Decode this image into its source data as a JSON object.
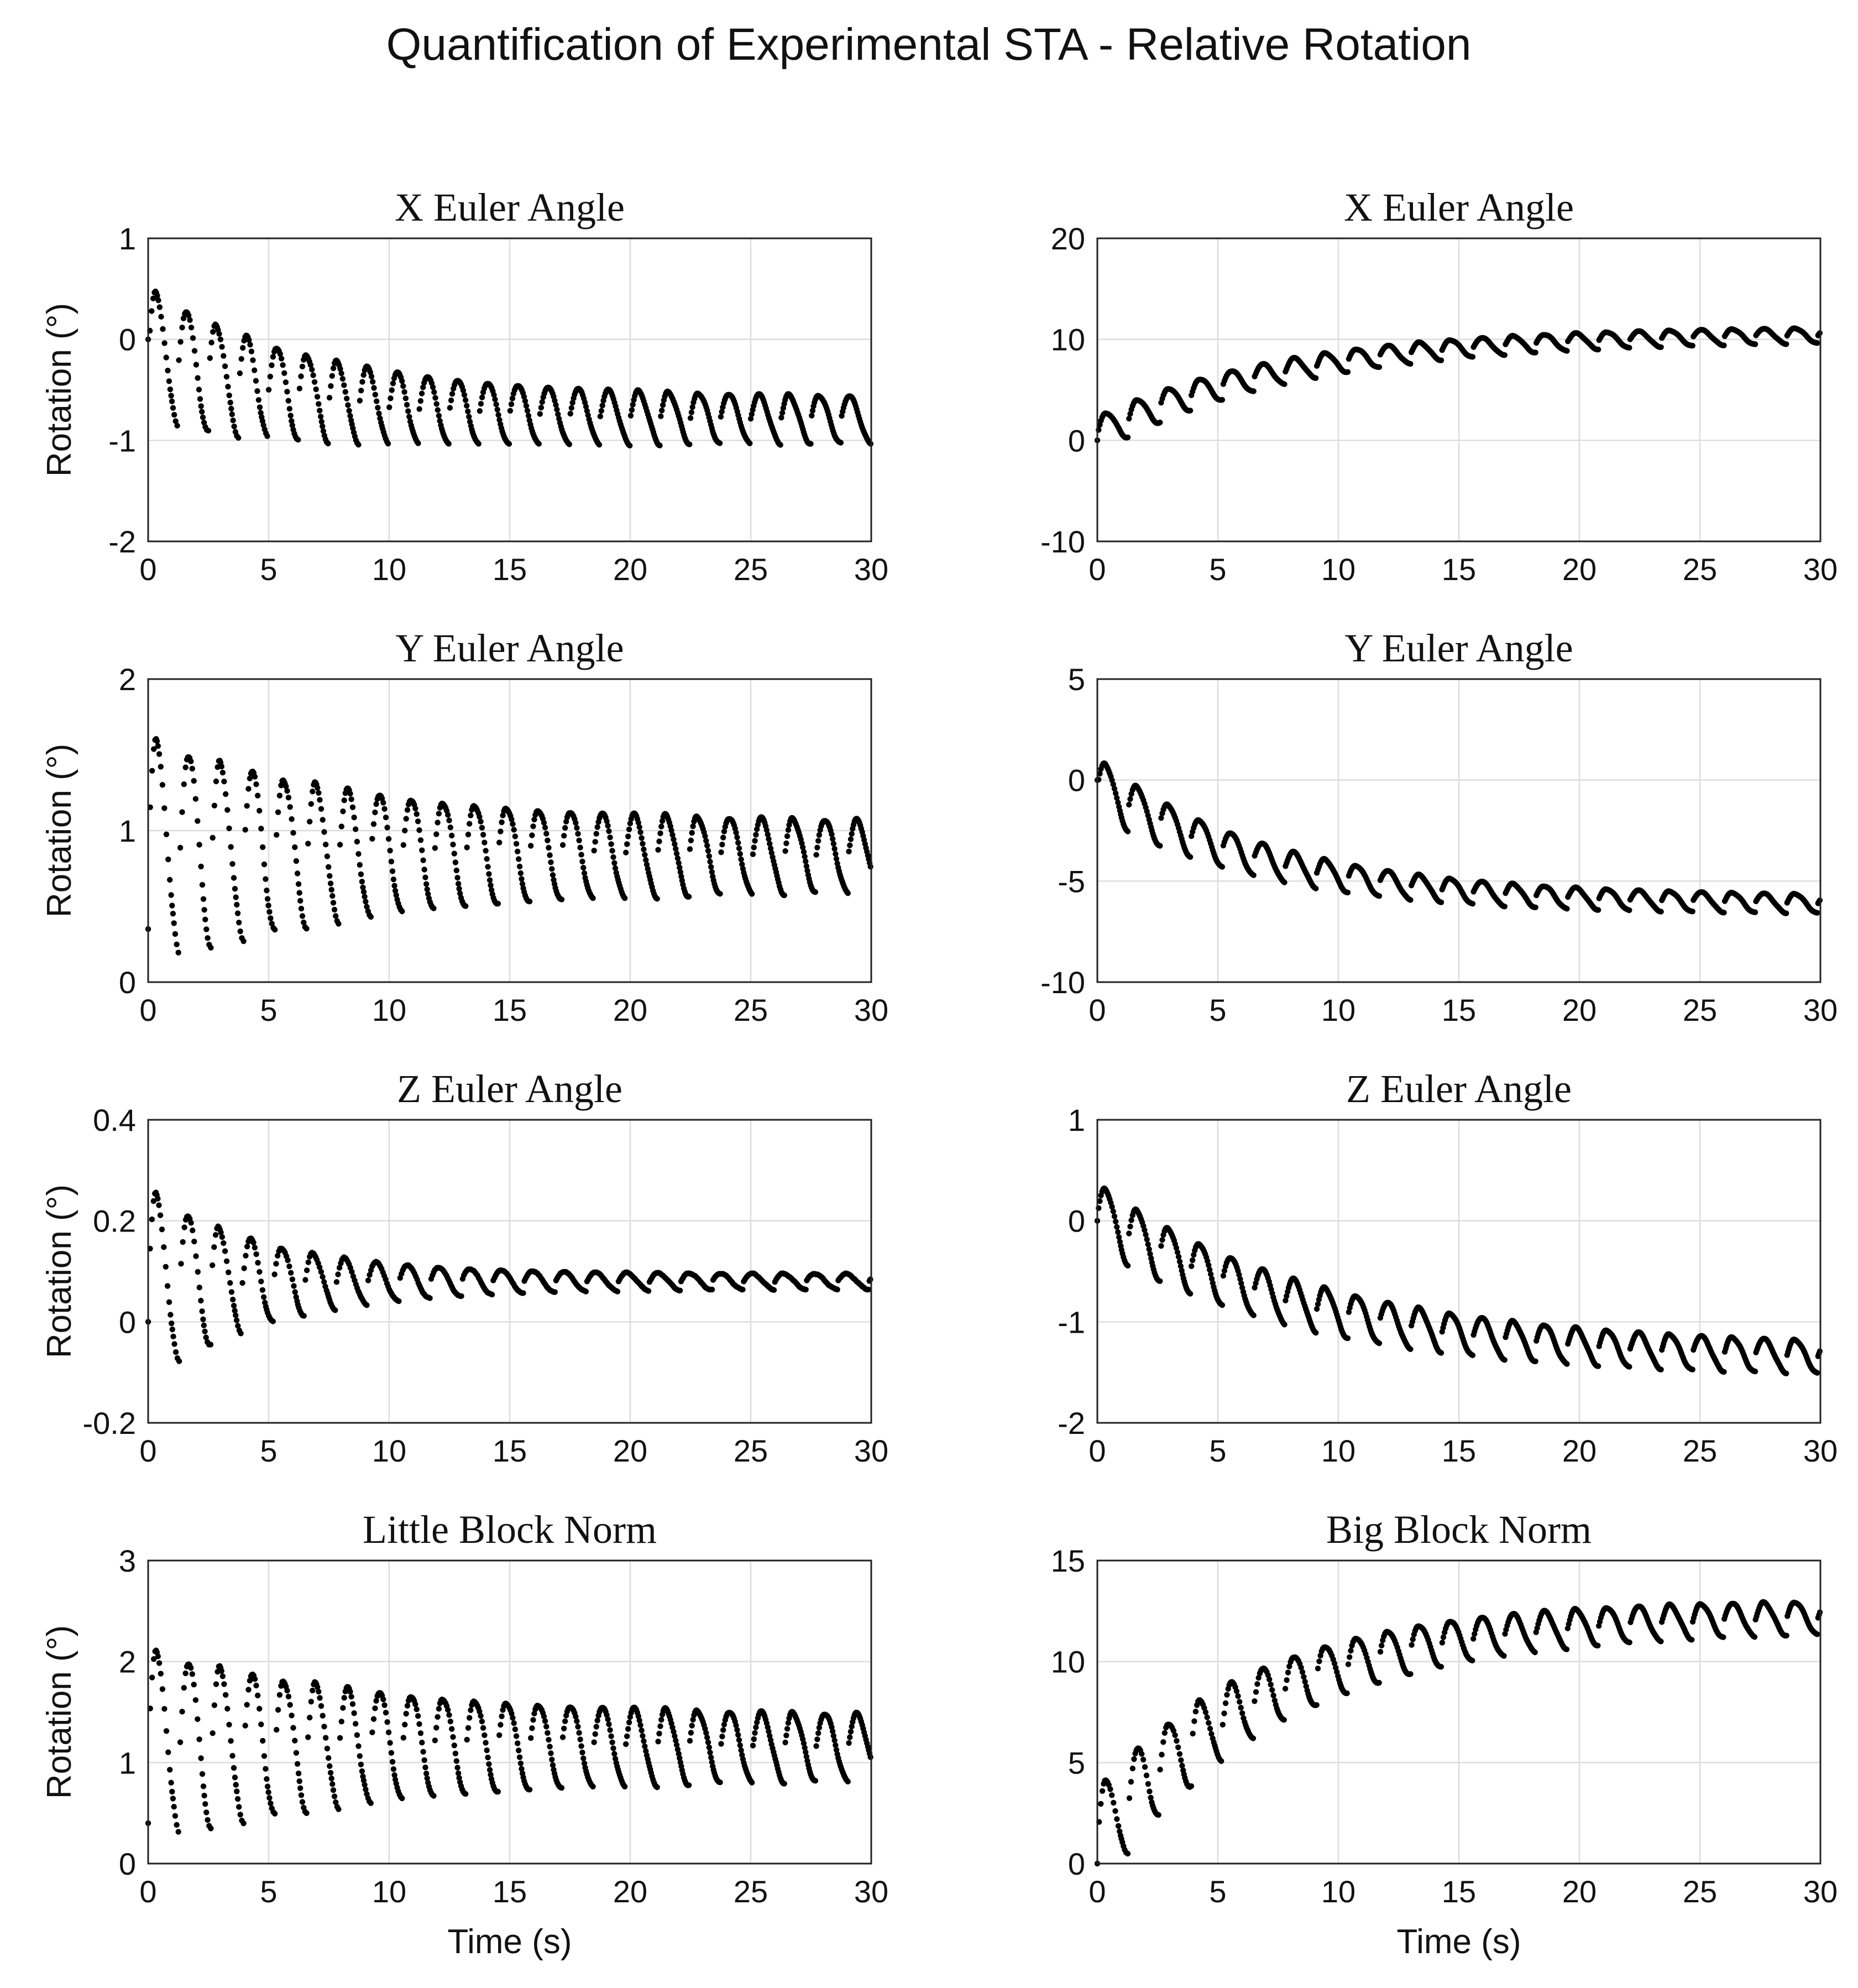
{
  "figure_title": "Quantification of Experimental STA - Relative Rotation",
  "chart_data": [
    {
      "type": "scatter",
      "title": "X Euler Angle",
      "xlabel": "",
      "ylabel": "Rotation (°)",
      "xlim": [
        0,
        30
      ],
      "ylim": [
        -2,
        1
      ],
      "xticks": [
        0,
        5,
        10,
        15,
        20,
        25,
        30
      ],
      "yticks": [
        -2,
        -1,
        0,
        1
      ],
      "grid": true,
      "model": {
        "x_end": 30,
        "period": 1.25,
        "start": 0,
        "base0": -0.15,
        "base1": -0.8,
        "baseTau": 6,
        "amp0": 0.65,
        "amp1": 0.22,
        "ampTau": 9,
        "dense": 0.45
      }
    },
    {
      "type": "scatter",
      "title": "X Euler Angle",
      "xlabel": "",
      "ylabel": "",
      "xlim": [
        0,
        30
      ],
      "ylim": [
        -10,
        20
      ],
      "xticks": [
        0,
        5,
        10,
        15,
        20,
        25,
        30
      ],
      "yticks": [
        -10,
        0,
        10,
        20
      ],
      "grid": true,
      "model": {
        "x_end": 30,
        "period": 1.3,
        "start": 0,
        "base0": 0.5,
        "base1": 10.6,
        "baseTau": 8,
        "amp0": 1.8,
        "amp1": 0.7,
        "ampTau": 10,
        "dense": 0.75
      }
    },
    {
      "type": "scatter",
      "title": "Y Euler Angle",
      "xlabel": "",
      "ylabel": "Rotation (°)",
      "xlim": [
        0,
        30
      ],
      "ylim": [
        0,
        2
      ],
      "xticks": [
        0,
        5,
        10,
        15,
        20,
        25,
        30
      ],
      "yticks": [
        0,
        1,
        2
      ],
      "grid": true,
      "model": {
        "x_end": 30,
        "period": 1.32,
        "start": 0.35,
        "base0": 0.85,
        "base1": 0.83,
        "baseTau": 8,
        "amp0": 0.75,
        "amp1": 0.22,
        "ampTau": 9,
        "dense": 0.3
      }
    },
    {
      "type": "scatter",
      "title": "Y Euler Angle",
      "xlabel": "",
      "ylabel": "",
      "xlim": [
        0,
        30
      ],
      "ylim": [
        -10,
        5
      ],
      "xticks": [
        0,
        5,
        10,
        15,
        20,
        25,
        30
      ],
      "yticks": [
        -10,
        -5,
        0,
        5
      ],
      "grid": true,
      "model": {
        "x_end": 30,
        "period": 1.3,
        "start": 0,
        "base0": -0.3,
        "base1": -6.2,
        "baseTau": 7,
        "amp0": 1.4,
        "amp1": 0.45,
        "ampTau": 8,
        "dense": 0.75
      }
    },
    {
      "type": "scatter",
      "title": "Z Euler Angle",
      "xlabel": "",
      "ylabel": "Rotation (°)",
      "xlim": [
        0,
        30
      ],
      "ylim": [
        -0.2,
        0.4
      ],
      "xticks": [
        0,
        5,
        10,
        15,
        20,
        25,
        30
      ],
      "yticks": [
        -0.2,
        0,
        0.2,
        0.4
      ],
      "grid": true,
      "model": {
        "x_end": 30,
        "period": 1.3,
        "start": 0,
        "base0": 0.07,
        "base1": 0.08,
        "baseTau": 8,
        "amp0": 0.19,
        "amp1": 0.015,
        "ampTau": 5,
        "dense": 0.35
      }
    },
    {
      "type": "scatter",
      "title": "Z Euler Angle",
      "xlabel": "",
      "ylabel": "",
      "xlim": [
        0,
        30
      ],
      "ylim": [
        -2,
        1
      ],
      "xticks": [
        0,
        5,
        10,
        15,
        20,
        25,
        30
      ],
      "yticks": [
        -2,
        -1,
        0,
        1
      ],
      "grid": true,
      "model": {
        "x_end": 30,
        "period": 1.3,
        "start": 0,
        "base0": 0.05,
        "base1": -1.4,
        "baseTau": 9,
        "amp0": 0.32,
        "amp1": 0.15,
        "ampTau": 12,
        "dense": 0.75
      }
    },
    {
      "type": "scatter",
      "title": "Little Block Norm",
      "xlabel": "Time (s)",
      "ylabel": "Rotation (°)",
      "xlim": [
        0,
        30
      ],
      "ylim": [
        0,
        3
      ],
      "xticks": [
        0,
        5,
        10,
        15,
        20,
        25,
        30
      ],
      "yticks": [
        0,
        1,
        2,
        3
      ],
      "grid": true,
      "model": {
        "x_end": 30,
        "period": 1.32,
        "start": 0.4,
        "base0": 1.15,
        "base1": 1.15,
        "baseTau": 10,
        "amp0": 0.95,
        "amp1": 0.3,
        "ampTau": 10,
        "dense": 0.3
      }
    },
    {
      "type": "scatter",
      "title": "Big Block Norm",
      "xlabel": "Time (s)",
      "ylabel": "",
      "xlim": [
        0,
        30
      ],
      "ylim": [
        0,
        15
      ],
      "xticks": [
        0,
        5,
        10,
        15,
        20,
        25,
        30
      ],
      "yticks": [
        0,
        5,
        10,
        15
      ],
      "grid": true,
      "model": {
        "x_end": 30,
        "period": 1.3,
        "start": 0,
        "base0": 1.0,
        "base1": 12.3,
        "baseTau": 7,
        "amp0": 2.6,
        "amp1": 0.75,
        "ampTau": 9,
        "dense": 0.45
      }
    }
  ]
}
